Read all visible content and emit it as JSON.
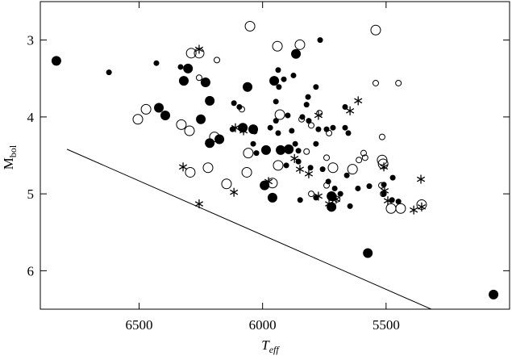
{
  "chart_data": {
    "type": "scatter",
    "xlabel": "T",
    "xlabel_sub": "eff",
    "ylabel": "M",
    "ylabel_sub": "bol",
    "xlim": [
      6900,
      5000
    ],
    "ylim": [
      2.5,
      6.5
    ],
    "xticks": [
      6500,
      6000,
      5500
    ],
    "yticks": [
      3,
      4,
      5,
      6
    ],
    "color": "#000000",
    "series": [
      {
        "marker": "filled",
        "x": [
          6835,
          6420,
          6394,
          6302,
          6319,
          6231,
          6214,
          6250,
          6214,
          6175,
          6061,
          6080,
          6038,
          5986,
          5927,
          5894,
          5992,
          5960,
          5865,
          5721,
          5721,
          5574,
          5065,
          5953
        ],
        "values": [
          3.27,
          3.88,
          3.98,
          3.37,
          3.53,
          3.55,
          3.79,
          4.03,
          4.34,
          4.29,
          3.61,
          4.14,
          4.16,
          4.43,
          4.43,
          4.42,
          4.89,
          5.05,
          3.18,
          5.03,
          5.17,
          5.77,
          6.31,
          3.53
        ]
      },
      {
        "marker": "dot",
        "x": [
          6622,
          6430,
          6332,
          6116,
          6094,
          6122,
          6032,
          6038,
          6025,
          5937,
          5914,
          5875,
          5934,
          5946,
          5946,
          5937,
          5969,
          5898,
          5882,
          5868,
          5855,
          5904,
          5839,
          5816,
          5822,
          5813,
          5784,
          5767,
          5741,
          5774,
          5784,
          5806,
          5757,
          5734,
          5715,
          5666,
          5666,
          5653,
          5659,
          5708,
          5685,
          5614,
          5568,
          5509,
          5473,
          5509,
          5476,
          5450,
          5646,
          5848,
          5784,
          5855
        ],
        "values": [
          3.42,
          3.3,
          3.35,
          3.82,
          3.87,
          4.16,
          4.19,
          4.35,
          4.47,
          3.39,
          3.51,
          3.46,
          3.61,
          3.8,
          4.05,
          4.21,
          4.14,
          3.98,
          4.18,
          4.35,
          4.58,
          4.63,
          4.0,
          3.74,
          3.84,
          4.05,
          3.61,
          3.0,
          4.16,
          4.16,
          4.35,
          4.66,
          4.68,
          4.84,
          4.14,
          3.87,
          4.14,
          4.21,
          4.76,
          4.93,
          5.0,
          4.93,
          4.9,
          4.88,
          4.79,
          5.0,
          5.08,
          5.1,
          5.16,
          5.08,
          5.05,
          4.44
        ]
      },
      {
        "marker": "open",
        "x": [
          6051,
          6289,
          6257,
          6505,
          6472,
          6329,
          6296,
          6293,
          6221,
          6195,
          6146,
          6058,
          6064,
          5960,
          5937,
          5930,
          5940,
          5542,
          5636,
          5516,
          5512,
          5480,
          5441,
          5356,
          5849,
          5715
        ],
        "values": [
          2.82,
          3.17,
          3.17,
          4.03,
          3.9,
          4.1,
          4.18,
          4.72,
          4.66,
          4.26,
          4.87,
          4.47,
          4.72,
          4.86,
          4.63,
          3.97,
          3.08,
          2.87,
          4.68,
          4.56,
          4.61,
          5.19,
          5.19,
          5.14,
          3.06,
          4.66
        ]
      },
      {
        "marker": "open-small",
        "x": [
          6185,
          6084,
          6257,
          5842,
          5803,
          5822,
          5803,
          5741,
          5731,
          5770,
          5591,
          5585,
          5610,
          5516,
          5450,
          5519,
          5512,
          5542,
          5698,
          5741
        ],
        "values": [
          3.26,
          3.9,
          3.49,
          4.03,
          4.11,
          4.45,
          5.0,
          4.53,
          4.21,
          3.95,
          4.47,
          4.53,
          4.56,
          4.26,
          3.56,
          4.89,
          5.0,
          3.56,
          5.07,
          4.89
        ]
      },
      {
        "marker": "star",
        "x": [
          6257,
          6322,
          6116,
          6257,
          6110,
          6077,
          5976,
          5849,
          5813,
          5774,
          5774,
          5731,
          5702,
          5613,
          5646,
          5509,
          5506,
          5493,
          5359,
          5388,
          5356,
          5871
        ],
        "values": [
          3.12,
          4.65,
          4.98,
          5.13,
          4.14,
          4.18,
          4.84,
          4.68,
          4.74,
          3.98,
          5.03,
          5.13,
          5.07,
          3.79,
          3.92,
          4.65,
          4.96,
          5.09,
          4.81,
          5.21,
          5.17,
          4.54
        ]
      },
      {
        "marker": "line",
        "x": [
          6792,
          5317
        ],
        "values": [
          4.42,
          6.5
        ]
      }
    ]
  }
}
